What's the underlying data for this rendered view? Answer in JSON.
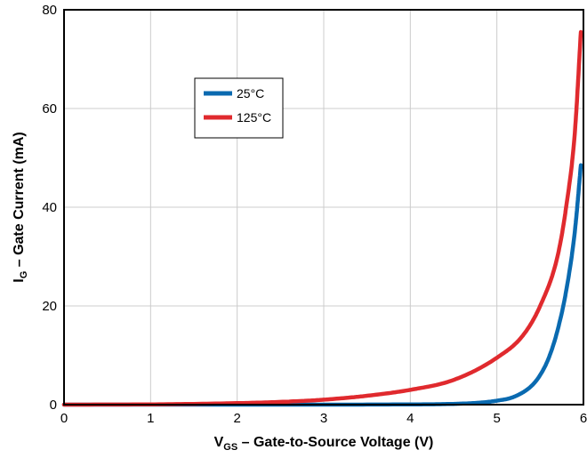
{
  "chart_data": {
    "type": "line",
    "xlabel": {
      "main": "V",
      "sub": "GS",
      "rest": " – Gate-to-Source Voltage (V)"
    },
    "ylabel": {
      "main": "I",
      "sub": "G",
      "rest": " – Gate Current (mA)"
    },
    "xlim": [
      0,
      6
    ],
    "ylim": [
      0,
      80
    ],
    "x_ticks": [
      0,
      1,
      2,
      3,
      4,
      5,
      6
    ],
    "y_ticks": [
      0,
      20,
      40,
      60,
      80
    ],
    "grid": true,
    "legend_placement": "upper-left-inside",
    "series": [
      {
        "name": "25°C",
        "color": "#0a6ab0",
        "x": [
          0,
          1,
          2,
          3,
          4,
          4.5,
          4.8,
          5.0,
          5.2,
          5.4,
          5.5,
          5.6,
          5.7,
          5.8,
          5.9,
          5.97
        ],
        "y": [
          0,
          0,
          0,
          0,
          0.05,
          0.15,
          0.4,
          0.8,
          1.6,
          3.8,
          6.0,
          9.5,
          15.0,
          23.0,
          35.0,
          48.5
        ]
      },
      {
        "name": "125°C",
        "color": "#e02a2e",
        "x": [
          0,
          1,
          2,
          2.5,
          3,
          3.5,
          4,
          4.5,
          5,
          5.3,
          5.5,
          5.7,
          5.8,
          5.9,
          5.97
        ],
        "y": [
          0,
          0.05,
          0.3,
          0.55,
          1.0,
          1.8,
          3.0,
          5.0,
          9.5,
          14.0,
          20.0,
          30.0,
          40.0,
          55.0,
          75.5
        ]
      }
    ]
  }
}
